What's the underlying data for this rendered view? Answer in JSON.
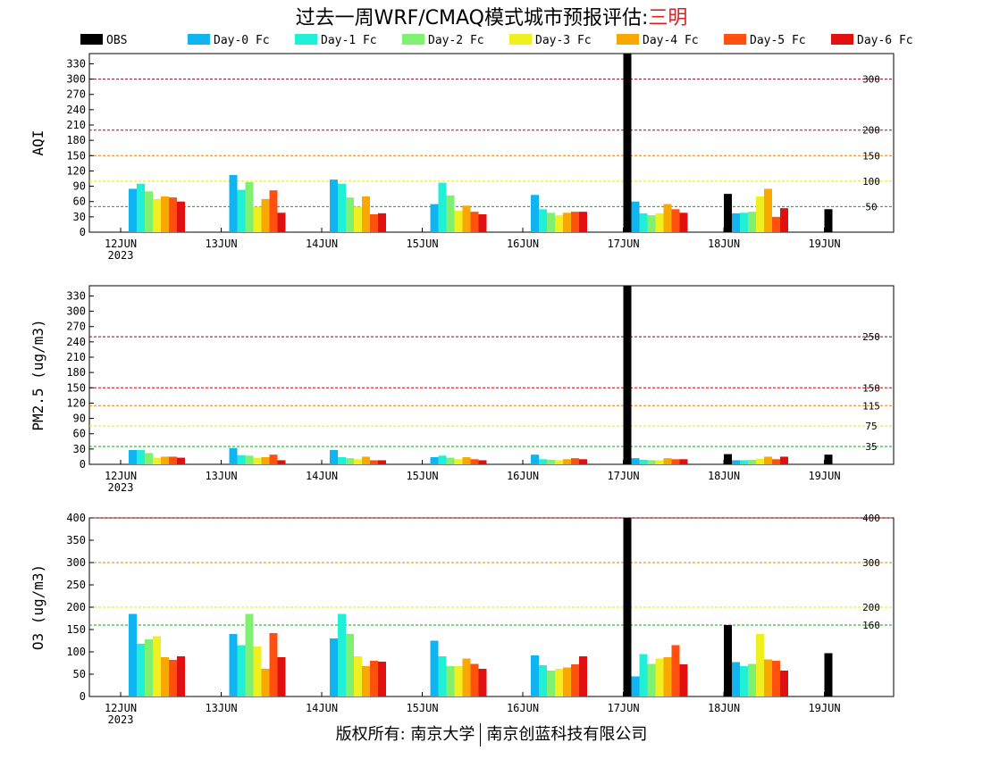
{
  "page": {
    "title_prefix": "过去一周WRF/CMAQ模式城市预报评估:",
    "city": "三明",
    "footer_left": "版权所有: 南京大学",
    "footer_right": "南京创蓝科技有限公司"
  },
  "legend": [
    {
      "name": "OBS",
      "color": "#000000"
    },
    {
      "name": "Day-0 Fc",
      "color": "#10b4f0"
    },
    {
      "name": "Day-1 Fc",
      "color": "#20f0d8"
    },
    {
      "name": "Day-2 Fc",
      "color": "#80f070"
    },
    {
      "name": "Day-3 Fc",
      "color": "#f0f020"
    },
    {
      "name": "Day-4 Fc",
      "color": "#f8a800"
    },
    {
      "name": "Day-5 Fc",
      "color": "#ff5010"
    },
    {
      "name": "Day-6 Fc",
      "color": "#e01010"
    }
  ],
  "chart_data": [
    {
      "type": "bar",
      "ylabel": "AQI",
      "ylim": [
        0,
        350
      ],
      "yticks": [
        0,
        30,
        60,
        90,
        120,
        150,
        180,
        210,
        240,
        270,
        300,
        330
      ],
      "categories": [
        "12JUN",
        "13JUN",
        "14JUN",
        "15JUN",
        "16JUN",
        "17JUN",
        "18JUN",
        "19JUN"
      ],
      "year_label": "2023",
      "reference_lines": [
        {
          "value": 50,
          "label": "50",
          "color": "#00b000"
        },
        {
          "value": 100,
          "label": "100",
          "color": "#e8e800"
        },
        {
          "value": 150,
          "label": "150",
          "color": "#f08000"
        },
        {
          "value": 200,
          "label": "200",
          "color": "#d00000"
        },
        {
          "value": 300,
          "label": "300",
          "color": "#900030"
        }
      ],
      "series": [
        {
          "name": "OBS",
          "values": [
            null,
            null,
            null,
            null,
            null,
            350,
            75,
            45
          ]
        },
        {
          "name": "Day-0 Fc",
          "values": [
            85,
            112,
            103,
            55,
            73,
            60,
            37,
            null
          ]
        },
        {
          "name": "Day-1 Fc",
          "values": [
            95,
            83,
            95,
            97,
            45,
            37,
            38,
            null
          ]
        },
        {
          "name": "Day-2 Fc",
          "values": [
            80,
            98,
            68,
            72,
            38,
            33,
            40,
            null
          ]
        },
        {
          "name": "Day-3 Fc",
          "values": [
            65,
            50,
            50,
            42,
            33,
            37,
            70,
            null
          ]
        },
        {
          "name": "Day-4 Fc",
          "values": [
            70,
            65,
            70,
            52,
            38,
            55,
            85,
            null
          ]
        },
        {
          "name": "Day-5 Fc",
          "values": [
            68,
            82,
            35,
            40,
            40,
            45,
            30,
            null
          ]
        },
        {
          "name": "Day-6 Fc",
          "values": [
            60,
            38,
            37,
            35,
            40,
            38,
            47,
            null
          ]
        }
      ]
    },
    {
      "type": "bar",
      "ylabel": "PM2.5 (ug/m3)",
      "ylim": [
        0,
        350
      ],
      "yticks": [
        0,
        30,
        60,
        90,
        120,
        150,
        180,
        210,
        240,
        270,
        300,
        330
      ],
      "categories": [
        "12JUN",
        "13JUN",
        "14JUN",
        "15JUN",
        "16JUN",
        "17JUN",
        "18JUN",
        "19JUN"
      ],
      "year_label": "2023",
      "reference_lines": [
        {
          "value": 35,
          "label": "35",
          "color": "#00b000"
        },
        {
          "value": 75,
          "label": "75",
          "color": "#e8e800"
        },
        {
          "value": 115,
          "label": "115",
          "color": "#f08000"
        },
        {
          "value": 150,
          "label": "150",
          "color": "#d00000"
        },
        {
          "value": 250,
          "label": "250",
          "color": "#900030"
        }
      ],
      "series": [
        {
          "name": "OBS",
          "values": [
            null,
            null,
            null,
            null,
            null,
            350,
            20,
            19
          ]
        },
        {
          "name": "Day-0 Fc",
          "values": [
            28,
            32,
            28,
            14,
            19,
            12,
            8,
            null
          ]
        },
        {
          "name": "Day-1 Fc",
          "values": [
            28,
            18,
            14,
            17,
            10,
            9,
            8,
            null
          ]
        },
        {
          "name": "Day-2 Fc",
          "values": [
            22,
            17,
            12,
            13,
            9,
            8,
            9,
            null
          ]
        },
        {
          "name": "Day-3 Fc",
          "values": [
            13,
            13,
            10,
            10,
            8,
            8,
            11,
            null
          ]
        },
        {
          "name": "Day-4 Fc",
          "values": [
            15,
            14,
            15,
            14,
            10,
            12,
            15,
            null
          ]
        },
        {
          "name": "Day-5 Fc",
          "values": [
            15,
            19,
            8,
            10,
            12,
            10,
            10,
            null
          ]
        },
        {
          "name": "Day-6 Fc",
          "values": [
            13,
            8,
            8,
            8,
            10,
            10,
            15,
            null
          ]
        }
      ]
    },
    {
      "type": "bar",
      "ylabel": "O3 (ug/m3)",
      "ylim": [
        0,
        400
      ],
      "yticks": [
        0,
        50,
        100,
        150,
        200,
        250,
        300,
        350,
        400
      ],
      "categories": [
        "12JUN",
        "13JUN",
        "14JUN",
        "15JUN",
        "16JUN",
        "17JUN",
        "18JUN",
        "19JUN"
      ],
      "year_label": "2023",
      "reference_lines": [
        {
          "value": 160,
          "label": "160",
          "color": "#00b000"
        },
        {
          "value": 200,
          "label": "200",
          "color": "#e8e800"
        },
        {
          "value": 300,
          "label": "300",
          "color": "#f08000"
        },
        {
          "value": 400,
          "label": "400",
          "color": "#d00000"
        }
      ],
      "series": [
        {
          "name": "OBS",
          "values": [
            null,
            null,
            null,
            null,
            null,
            400,
            160,
            97
          ]
        },
        {
          "name": "Day-0 Fc",
          "values": [
            185,
            140,
            130,
            125,
            92,
            45,
            77,
            null
          ]
        },
        {
          "name": "Day-1 Fc",
          "values": [
            118,
            115,
            185,
            90,
            70,
            95,
            68,
            null
          ]
        },
        {
          "name": "Day-2 Fc",
          "values": [
            128,
            185,
            140,
            68,
            58,
            73,
            73,
            null
          ]
        },
        {
          "name": "Day-3 Fc",
          "values": [
            135,
            112,
            90,
            68,
            62,
            85,
            140,
            null
          ]
        },
        {
          "name": "Day-4 Fc",
          "values": [
            88,
            62,
            68,
            85,
            65,
            88,
            83,
            null
          ]
        },
        {
          "name": "Day-5 Fc",
          "values": [
            82,
            142,
            80,
            73,
            72,
            115,
            80,
            null
          ]
        },
        {
          "name": "Day-6 Fc",
          "values": [
            90,
            88,
            78,
            62,
            90,
            72,
            58,
            null
          ]
        }
      ]
    }
  ]
}
